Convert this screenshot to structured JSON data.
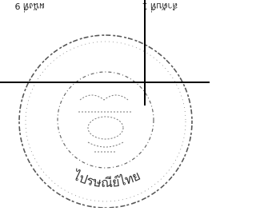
{
  "header": {
    "left": "ผนังที่ 9",
    "right": "ลำดับที่ 1"
  },
  "seal": {
    "text": "ไปรษณีย์ไทย"
  }
}
